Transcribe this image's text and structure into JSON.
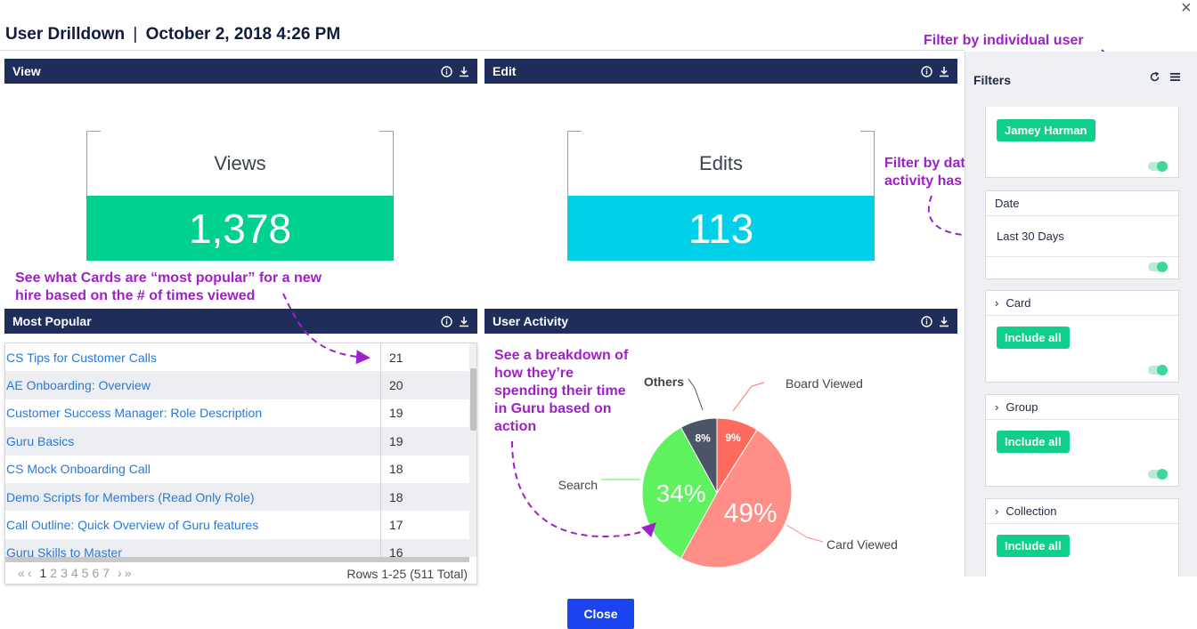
{
  "window": {
    "close_glyph": "×"
  },
  "header": {
    "title": "User Drilldown",
    "separator": "|",
    "datetime": "October 2, 2018 4:26 PM"
  },
  "panels": {
    "view": {
      "title": "View"
    },
    "edit": {
      "title": "Edit"
    },
    "most_popular": {
      "title": "Most Popular"
    },
    "user_activity": {
      "title": "User Activity"
    }
  },
  "panel_icons": [
    "info-icon",
    "download-icon"
  ],
  "metrics": {
    "views": {
      "label": "Views",
      "value": "1,378",
      "color": "#00d190"
    },
    "edits": {
      "label": "Edits",
      "value": "113",
      "color": "#00d0e8"
    }
  },
  "annotations": {
    "filter_user": "Filter by individual user",
    "filter_date_line1": "Filter by date to see how a users’s",
    "filter_date_line2": "activity has changed over time",
    "popular_line1": "See what Cards are “most popular” for a new",
    "popular_line2": "hire based on the # of times viewed",
    "breakdown_line1": "See a breakdown of",
    "breakdown_line2": "how they’re",
    "breakdown_line3": "spending their time",
    "breakdown_line4": "in Guru based on",
    "breakdown_line5": "action",
    "color": "#a020c8"
  },
  "most_popular": {
    "rows": [
      {
        "name": "CS Tips for Customer Calls",
        "count": "21"
      },
      {
        "name": "AE Onboarding: Overview",
        "count": "20"
      },
      {
        "name": "Customer Success Manager: Role Description",
        "count": "19"
      },
      {
        "name": "Guru Basics",
        "count": "19"
      },
      {
        "name": "CS Mock Onboarding Call",
        "count": "18"
      },
      {
        "name": "Demo Scripts for Members (Read Only Role)",
        "count": "18"
      },
      {
        "name": "Call Outline: Quick Overview of Guru features",
        "count": "17"
      },
      {
        "name": "Guru Skills to Master",
        "count": "16"
      }
    ],
    "pager": {
      "first": "«",
      "prev": "‹",
      "pages": [
        "1",
        "2",
        "3",
        "4",
        "5",
        "6",
        "7"
      ],
      "current": "1",
      "next": "›",
      "last": "»"
    },
    "rows_total": "Rows 1-25 (511 Total)"
  },
  "chart_data": {
    "type": "pie",
    "slices": [
      {
        "label": "Board Viewed",
        "value": 9,
        "display": "9%",
        "color": "#ff6a5e"
      },
      {
        "label": "Card Viewed",
        "value": 49,
        "display": "49%",
        "color": "#ff8f86"
      },
      {
        "label": "Search",
        "value": 34,
        "display": "34%",
        "color": "#5ef25e"
      },
      {
        "label": "Others",
        "value": 8,
        "display": "8%",
        "color": "#4a5568"
      }
    ]
  },
  "filters": {
    "title": "Filters",
    "refresh_icon": "refresh-icon",
    "menu_icon": "menu-icon",
    "user_chip": "Jamey Harman",
    "date": {
      "label": "Date",
      "value": "Last 30 Days"
    },
    "card": {
      "label": "Card",
      "chip": "Include all"
    },
    "group": {
      "label": "Group",
      "chip": "Include all"
    },
    "collection": {
      "label": "Collection",
      "chip": "Include all"
    },
    "chevron": "›"
  },
  "footer": {
    "close_label": "Close"
  }
}
